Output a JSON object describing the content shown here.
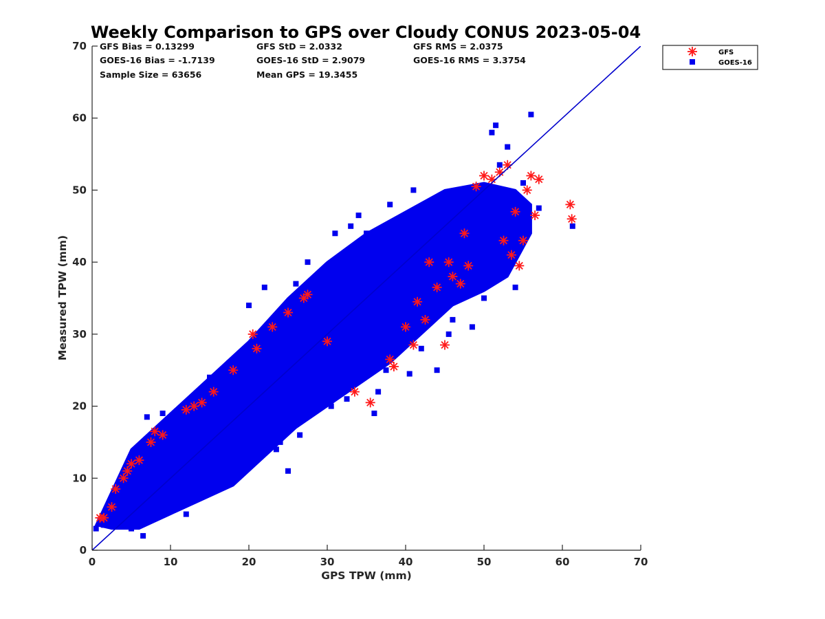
{
  "chart_data": {
    "type": "scatter",
    "title": "Weekly Comparison to GPS over Cloudy CONUS 2023-05-04",
    "xlabel": "GPS TPW (mm)",
    "ylabel": "Measured TPW (mm)",
    "xlim": [
      0,
      70
    ],
    "ylim": [
      0,
      70
    ],
    "xticks": [
      "0",
      "10",
      "20",
      "30",
      "40",
      "50",
      "60",
      "70"
    ],
    "yticks": [
      "0",
      "10",
      "20",
      "30",
      "40",
      "50",
      "60",
      "70"
    ],
    "grid": false,
    "legend_position": "top-right",
    "stats": [
      [
        "GFS Bias = 0.13299",
        "GFS StD = 2.0332",
        "GFS RMS = 2.0375"
      ],
      [
        "GOES-16 Bias = -1.7139",
        "GOES-16 StD = 2.9079",
        "GOES-16 RMS = 3.3754"
      ],
      [
        "Sample Size = 63656",
        "Mean GPS = 19.3455",
        ""
      ]
    ],
    "reference_line": {
      "x": [
        0,
        70
      ],
      "y": [
        0,
        70
      ],
      "color": "#0000cc"
    },
    "series": [
      {
        "name": "GFS",
        "marker": "asterisk",
        "color": "#ff1a1a",
        "x": [
          1.0,
          1.5,
          2.5,
          3.0,
          4.0,
          4.5,
          5.0,
          6.0,
          7.5,
          8.0,
          9.0,
          12.0,
          13.0,
          14.0,
          15.5,
          18.0,
          20.5,
          21.0,
          23.0,
          25.0,
          27.0,
          27.5,
          30.0,
          33.5,
          35.5,
          38.0,
          38.5,
          40.0,
          41.0,
          41.5,
          42.5,
          43.0,
          44.0,
          45.0,
          45.5,
          46.0,
          47.0,
          47.5,
          48.0,
          49.0,
          50.0,
          51.0,
          52.0,
          52.5,
          53.0,
          53.5,
          54.0,
          54.5,
          55.0,
          55.5,
          56.0,
          56.5,
          57.0,
          61.0,
          61.2
        ],
        "y": [
          4.5,
          4.5,
          6.0,
          8.5,
          10.0,
          11.0,
          12.0,
          12.5,
          15.0,
          16.5,
          16.0,
          19.5,
          20.0,
          20.5,
          22.0,
          25.0,
          30.0,
          28.0,
          31.0,
          33.0,
          35.0,
          35.5,
          29.0,
          22.0,
          20.5,
          26.5,
          25.5,
          31.0,
          28.5,
          34.5,
          32.0,
          40.0,
          36.5,
          28.5,
          40.0,
          38.0,
          37.0,
          44.0,
          39.5,
          50.5,
          52.0,
          51.5,
          52.5,
          43.0,
          53.5,
          41.0,
          47.0,
          39.5,
          43.0,
          50.0,
          52.0,
          46.5,
          51.5,
          48.0,
          46.0
        ]
      },
      {
        "name": "GOES-16",
        "marker": "square",
        "color": "#0000ee",
        "x": [
          0.5,
          1.0,
          1.5,
          2.0,
          3.5,
          5.0,
          6.5,
          7.0,
          8.0,
          9.0,
          10.5,
          11.0,
          12.0,
          13.5,
          15.0,
          16.0,
          17.5,
          18.0,
          20.0,
          21.5,
          22.0,
          23.5,
          24.0,
          25.0,
          26.0,
          26.5,
          27.5,
          28.0,
          29.0,
          30.5,
          31.0,
          32.5,
          33.0,
          34.0,
          35.0,
          36.0,
          36.5,
          37.5,
          38.0,
          39.0,
          40.5,
          41.0,
          42.0,
          43.0,
          44.0,
          45.0,
          45.5,
          46.0,
          47.0,
          48.5,
          49.0,
          49.5,
          50.0,
          51.0,
          51.5,
          52.0,
          53.0,
          53.5,
          54.0,
          55.0,
          56.0,
          57.0,
          61.3
        ],
        "y": [
          3.0,
          4.0,
          3.5,
          5.0,
          4.0,
          3.0,
          2.0,
          18.5,
          5.5,
          19.0,
          7.0,
          17.0,
          5.0,
          9.0,
          24.0,
          10.0,
          26.0,
          12.0,
          34.0,
          13.0,
          36.5,
          14.0,
          15.0,
          11.0,
          37.0,
          16.0,
          40.0,
          19.0,
          36.5,
          20.0,
          44.0,
          21.0,
          45.0,
          46.5,
          44.0,
          19.0,
          22.0,
          25.0,
          48.0,
          28.0,
          24.5,
          50.0,
          28.0,
          48.0,
          25.0,
          39.0,
          30.0,
          32.0,
          50.0,
          31.0,
          40.5,
          38.0,
          35.0,
          58.0,
          59.0,
          53.5,
          56.0,
          45.0,
          36.5,
          51.0,
          60.5,
          47.5,
          45.0
        ]
      }
    ],
    "density_band": {
      "description_only_for_rendering": false,
      "x": [
        0.5,
        5,
        10,
        15,
        20,
        25,
        30,
        35,
        40,
        45,
        50,
        54,
        56,
        56,
        53,
        50,
        46,
        42,
        38,
        34,
        30,
        26,
        22,
        18,
        14,
        10,
        6,
        2.5,
        0.5
      ],
      "y": [
        3.5,
        14,
        19,
        24,
        29,
        35,
        40,
        44,
        47,
        50,
        51,
        50,
        48,
        44,
        38,
        36,
        34,
        30,
        26,
        23,
        20,
        17,
        13,
        9,
        7,
        5,
        3,
        3,
        3.5
      ]
    }
  }
}
